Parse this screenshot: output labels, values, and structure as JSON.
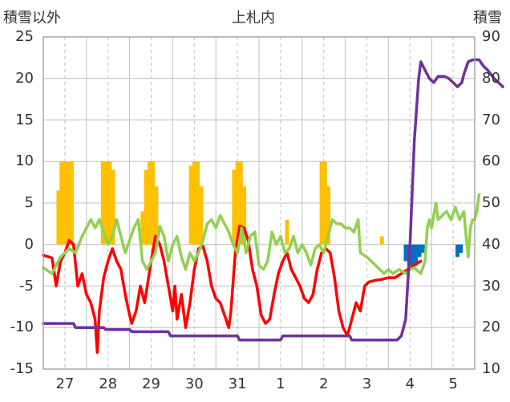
{
  "chart_data": {
    "type": "line",
    "title": "上札内",
    "ylabel_left": "積雪以外",
    "ylabel_right": "積雪",
    "ylim_left": [
      -15,
      25
    ],
    "ylim_right": [
      10,
      90
    ],
    "yticks_left": [
      "25",
      "20",
      "15",
      "10",
      "5",
      "0",
      "-5",
      "-10",
      "-15"
    ],
    "yticks_right": [
      "90",
      "80",
      "70",
      "60",
      "50",
      "40",
      "30",
      "20",
      "10"
    ],
    "categories": [
      "27",
      "28",
      "29",
      "30",
      "31",
      "1",
      "2",
      "3",
      "4",
      "5"
    ],
    "x_range_days": [
      0,
      10
    ],
    "grid": true,
    "colors": {
      "temperature": "#ff0000",
      "other_line": "#92d050",
      "snow_depth": "#7030a0",
      "bars_positive": "#ffc000",
      "bars_negative": "#0070c0",
      "grid": "#bfbfbf",
      "frame": "#a6a6a6"
    },
    "series": [
      {
        "key": "temperature",
        "axis": "left",
        "points": [
          [
            0,
            -1.3
          ],
          [
            0.2,
            -1.6
          ],
          [
            0.3,
            -5
          ],
          [
            0.4,
            -2
          ],
          [
            0.5,
            -1
          ],
          [
            0.6,
            0.5
          ],
          [
            0.7,
            0
          ],
          [
            0.8,
            -5
          ],
          [
            0.9,
            -3.5
          ],
          [
            1.0,
            -6
          ],
          [
            1.1,
            -7
          ],
          [
            1.2,
            -9
          ],
          [
            1.25,
            -13
          ],
          [
            1.3,
            -8
          ],
          [
            1.4,
            -4
          ],
          [
            1.5,
            -2
          ],
          [
            1.6,
            -0.5
          ],
          [
            1.7,
            -2
          ],
          [
            1.8,
            -3
          ],
          [
            1.9,
            -6
          ],
          [
            2.0,
            -8.5
          ],
          [
            2.05,
            -9.5
          ],
          [
            2.15,
            -8
          ],
          [
            2.25,
            -5
          ],
          [
            2.35,
            -7
          ],
          [
            2.5,
            -2
          ],
          [
            2.6,
            1
          ],
          [
            2.7,
            0
          ],
          [
            2.8,
            -2
          ],
          [
            2.9,
            -5
          ],
          [
            3.0,
            -8
          ],
          [
            3.05,
            -5
          ],
          [
            3.1,
            -9
          ],
          [
            3.2,
            -6
          ],
          [
            3.3,
            -10
          ],
          [
            3.4,
            -7
          ],
          [
            3.5,
            -3
          ],
          [
            3.6,
            -0.5
          ],
          [
            3.7,
            -0.2
          ],
          [
            3.8,
            -2
          ],
          [
            3.9,
            -5
          ],
          [
            4.0,
            -6.5
          ],
          [
            4.1,
            -7
          ],
          [
            4.2,
            -8.5
          ],
          [
            4.3,
            -10
          ],
          [
            4.35,
            -8
          ],
          [
            4.45,
            -1
          ],
          [
            4.55,
            2.2
          ],
          [
            4.65,
            2
          ],
          [
            4.75,
            0.5
          ],
          [
            4.85,
            -3
          ],
          [
            4.95,
            -5
          ],
          [
            5.05,
            -8.5
          ],
          [
            5.15,
            -9.5
          ],
          [
            5.25,
            -9
          ],
          [
            5.35,
            -6
          ],
          [
            5.45,
            -3.5
          ],
          [
            5.55,
            -2
          ],
          [
            5.65,
            -1
          ],
          [
            5.75,
            -3
          ],
          [
            5.85,
            -4
          ],
          [
            5.95,
            -5
          ],
          [
            6.05,
            -6.5
          ],
          [
            6.15,
            -7
          ],
          [
            6.25,
            -6
          ],
          [
            6.35,
            -3
          ],
          [
            6.45,
            -1
          ],
          [
            6.55,
            -0.5
          ],
          [
            6.65,
            -1
          ],
          [
            6.75,
            -4
          ],
          [
            6.85,
            -8
          ],
          [
            6.95,
            -10
          ],
          [
            7.05,
            -11
          ],
          [
            7.15,
            -9
          ],
          [
            7.25,
            -7
          ],
          [
            7.35,
            -8
          ],
          [
            7.45,
            -5
          ],
          [
            7.55,
            -4.5
          ],
          [
            7.7,
            -4.3
          ],
          [
            7.85,
            -4.2
          ],
          [
            8.0,
            -4
          ],
          [
            8.15,
            -4
          ],
          [
            8.3,
            -3.5
          ],
          [
            8.45,
            -3
          ],
          [
            8.6,
            -2.5
          ],
          [
            8.75,
            -2
          ]
        ]
      },
      {
        "key": "other_line",
        "axis": "left",
        "points": [
          [
            0,
            -2.8
          ],
          [
            0.2,
            -3.5
          ],
          [
            0.4,
            -1.5
          ],
          [
            0.5,
            -1
          ],
          [
            0.6,
            -0.5
          ],
          [
            0.75,
            -1
          ],
          [
            0.9,
            1
          ],
          [
            1.0,
            2
          ],
          [
            1.05,
            2.5
          ],
          [
            1.1,
            3
          ],
          [
            1.2,
            2
          ],
          [
            1.3,
            3
          ],
          [
            1.4,
            1.5
          ],
          [
            1.5,
            0
          ],
          [
            1.6,
            1
          ],
          [
            1.7,
            3
          ],
          [
            1.8,
            1
          ],
          [
            1.9,
            -1
          ],
          [
            2.0,
            0.5
          ],
          [
            2.1,
            2
          ],
          [
            2.2,
            3
          ],
          [
            2.3,
            -2
          ],
          [
            2.4,
            -3
          ],
          [
            2.5,
            -2
          ],
          [
            2.6,
            -1
          ],
          [
            2.7,
            2.2
          ],
          [
            2.8,
            1
          ],
          [
            2.9,
            -2
          ],
          [
            3.0,
            0
          ],
          [
            3.1,
            1
          ],
          [
            3.2,
            -1.5
          ],
          [
            3.3,
            -3
          ],
          [
            3.4,
            -1
          ],
          [
            3.5,
            -2
          ],
          [
            3.6,
            -1
          ],
          [
            3.7,
            0.5
          ],
          [
            3.8,
            2.5
          ],
          [
            3.9,
            3
          ],
          [
            4.0,
            2
          ],
          [
            4.1,
            3.5
          ],
          [
            4.2,
            2.5
          ],
          [
            4.3,
            1.5
          ],
          [
            4.4,
            0
          ],
          [
            4.5,
            -1
          ],
          [
            4.6,
            2
          ],
          [
            4.7,
            -1
          ],
          [
            4.8,
            1
          ],
          [
            4.9,
            1.5
          ],
          [
            5.0,
            -2.5
          ],
          [
            5.1,
            -3
          ],
          [
            5.2,
            -2
          ],
          [
            5.3,
            1.5
          ],
          [
            5.4,
            0
          ],
          [
            5.5,
            1
          ],
          [
            5.6,
            -1
          ],
          [
            5.7,
            -0.5
          ],
          [
            5.8,
            1
          ],
          [
            5.9,
            -1
          ],
          [
            6.0,
            0
          ],
          [
            6.1,
            -1
          ],
          [
            6.2,
            -2.5
          ],
          [
            6.3,
            -0.5
          ],
          [
            6.4,
            0
          ],
          [
            6.5,
            -1
          ],
          [
            6.6,
            1
          ],
          [
            6.7,
            3
          ],
          [
            6.8,
            2.5
          ],
          [
            6.9,
            2.5
          ],
          [
            7.0,
            2
          ],
          [
            7.1,
            2
          ],
          [
            7.2,
            1.5
          ],
          [
            7.3,
            3
          ],
          [
            7.35,
            -1
          ],
          [
            7.5,
            -1.5
          ],
          [
            7.6,
            -2
          ],
          [
            7.7,
            -2.5
          ],
          [
            7.8,
            -3
          ],
          [
            7.9,
            -3.5
          ],
          [
            8.0,
            -3
          ],
          [
            8.1,
            -3.5
          ],
          [
            8.25,
            -3
          ],
          [
            8.4,
            -3.5
          ],
          [
            8.5,
            -3
          ],
          [
            8.6,
            -2.8
          ],
          [
            8.75,
            -3.5
          ],
          [
            8.85,
            -2
          ],
          [
            8.9,
            2
          ],
          [
            8.95,
            3
          ],
          [
            9.0,
            2
          ],
          [
            9.05,
            3.5
          ],
          [
            9.1,
            5
          ],
          [
            9.15,
            3
          ],
          [
            9.25,
            3.5
          ],
          [
            9.35,
            4
          ],
          [
            9.45,
            3
          ],
          [
            9.55,
            4.5
          ],
          [
            9.65,
            3
          ],
          [
            9.75,
            4
          ],
          [
            9.8,
            1
          ],
          [
            9.85,
            -1.5
          ],
          [
            9.9,
            2
          ],
          [
            9.95,
            3
          ],
          [
            10.0,
            3
          ],
          [
            10.05,
            4
          ],
          [
            10.1,
            6
          ]
        ]
      },
      {
        "key": "snow_depth",
        "axis": "right",
        "points": [
          [
            0,
            21
          ],
          [
            0.7,
            21
          ],
          [
            0.75,
            20
          ],
          [
            1.4,
            20
          ],
          [
            1.45,
            19.5
          ],
          [
            2.0,
            19.5
          ],
          [
            2.05,
            19
          ],
          [
            2.9,
            19
          ],
          [
            2.95,
            18
          ],
          [
            4.5,
            18
          ],
          [
            4.55,
            17
          ],
          [
            5.5,
            17
          ],
          [
            5.55,
            18
          ],
          [
            7.1,
            18
          ],
          [
            7.15,
            17
          ],
          [
            8.0,
            17
          ],
          [
            8.2,
            17
          ],
          [
            8.3,
            18
          ],
          [
            8.4,
            22
          ],
          [
            8.5,
            40
          ],
          [
            8.6,
            65
          ],
          [
            8.7,
            80
          ],
          [
            8.75,
            84
          ],
          [
            8.85,
            82
          ],
          [
            8.95,
            80
          ],
          [
            9.05,
            79
          ],
          [
            9.15,
            80.5
          ],
          [
            9.3,
            80.5
          ],
          [
            9.4,
            80
          ],
          [
            9.5,
            79
          ],
          [
            9.6,
            78
          ],
          [
            9.7,
            79
          ],
          [
            9.75,
            81
          ],
          [
            9.85,
            84
          ],
          [
            9.95,
            84.5
          ],
          [
            10.1,
            84.5
          ],
          [
            10.2,
            83
          ],
          [
            10.3,
            82
          ],
          [
            10.45,
            80
          ],
          [
            10.55,
            79
          ],
          [
            10.65,
            78
          ]
        ]
      }
    ],
    "bars": [
      {
        "x": 0.35,
        "value": 6.5
      },
      {
        "x": 0.42,
        "value": 10
      },
      {
        "x": 0.5,
        "value": 10
      },
      {
        "x": 0.58,
        "value": 10
      },
      {
        "x": 0.66,
        "value": 10
      },
      {
        "x": 1.38,
        "value": 10
      },
      {
        "x": 1.46,
        "value": 10
      },
      {
        "x": 1.54,
        "value": 10
      },
      {
        "x": 1.62,
        "value": 9
      },
      {
        "x": 2.3,
        "value": 4
      },
      {
        "x": 2.38,
        "value": 9
      },
      {
        "x": 2.46,
        "value": 10
      },
      {
        "x": 2.54,
        "value": 10
      },
      {
        "x": 2.62,
        "value": 7
      },
      {
        "x": 3.42,
        "value": 9.5
      },
      {
        "x": 3.5,
        "value": 10
      },
      {
        "x": 3.58,
        "value": 10
      },
      {
        "x": 3.66,
        "value": 7
      },
      {
        "x": 4.42,
        "value": 9
      },
      {
        "x": 4.5,
        "value": 10
      },
      {
        "x": 4.58,
        "value": 10
      },
      {
        "x": 4.66,
        "value": 7
      },
      {
        "x": 5.65,
        "value": 3
      },
      {
        "x": 6.45,
        "value": 10
      },
      {
        "x": 6.53,
        "value": 10
      },
      {
        "x": 6.61,
        "value": 7
      },
      {
        "x": 7.85,
        "value": 1
      },
      {
        "x": 8.4,
        "value": -2
      },
      {
        "x": 8.48,
        "value": -2.5
      },
      {
        "x": 8.56,
        "value": -2.8
      },
      {
        "x": 8.64,
        "value": -2.5
      },
      {
        "x": 8.72,
        "value": -1.5
      },
      {
        "x": 8.8,
        "value": -1
      },
      {
        "x": 9.6,
        "value": -1.5
      },
      {
        "x": 9.68,
        "value": -1
      }
    ]
  }
}
